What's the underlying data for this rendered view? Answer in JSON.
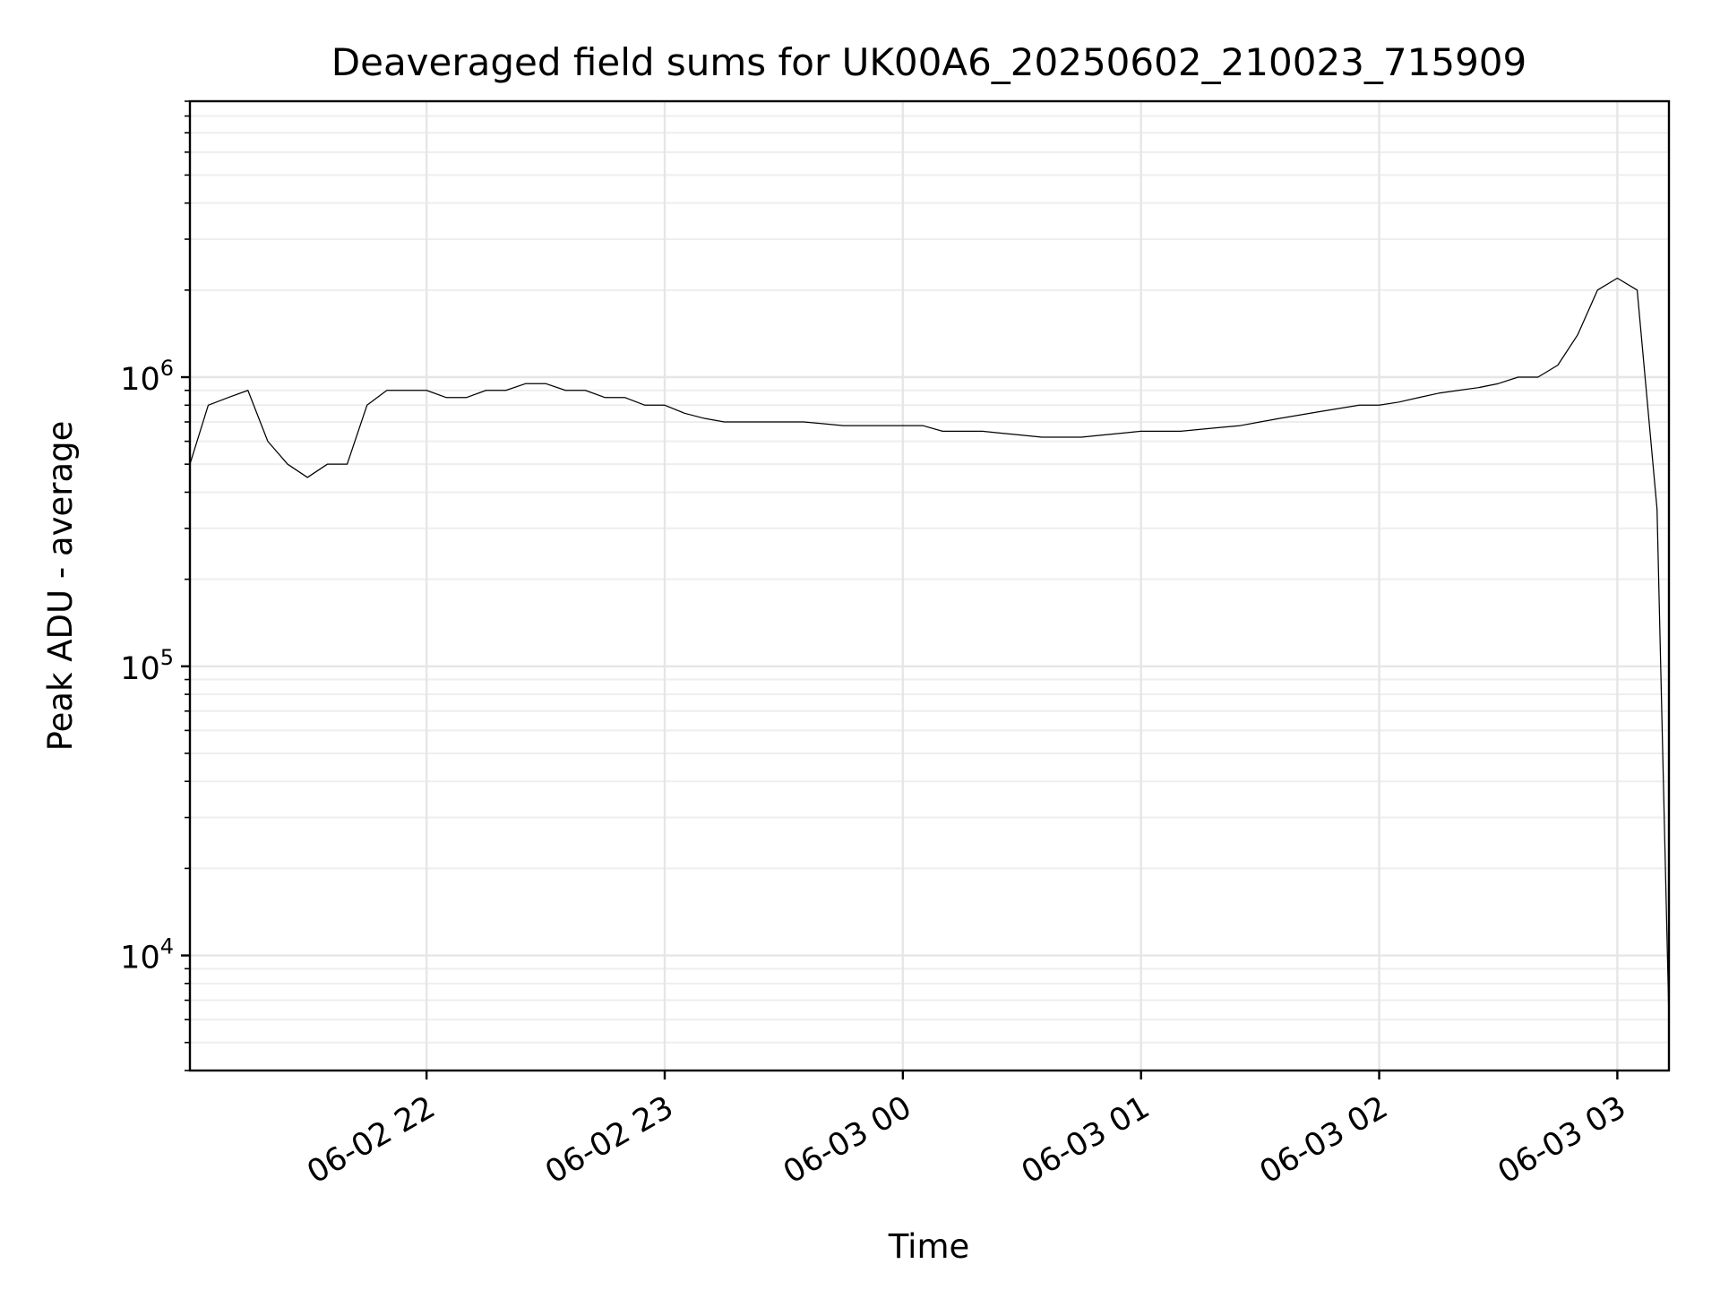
{
  "chart_data": {
    "type": "line",
    "title": "Deaveraged field sums for UK00A6_20250602_210023_715909",
    "xlabel": "Time",
    "ylabel": "Peak ADU - average",
    "y_scale": "log",
    "ylim": [
      4000,
      9000000
    ],
    "xlim": [
      "2025-06-02 21:00:23",
      "2025-06-03 03:13:00"
    ],
    "x_ticks": [
      {
        "value": "2025-06-02 22:00:00",
        "label": "06-02 22"
      },
      {
        "value": "2025-06-02 23:00:00",
        "label": "06-02 23"
      },
      {
        "value": "2025-06-03 00:00:00",
        "label": "06-03 00"
      },
      {
        "value": "2025-06-03 01:00:00",
        "label": "06-03 01"
      },
      {
        "value": "2025-06-03 02:00:00",
        "label": "06-03 02"
      },
      {
        "value": "2025-06-03 03:00:00",
        "label": "06-03 03"
      }
    ],
    "y_ticks": [
      {
        "value": 10000,
        "base": "10",
        "exponent": "4"
      },
      {
        "value": 100000,
        "base": "10",
        "exponent": "5"
      },
      {
        "value": 1000000,
        "base": "10",
        "exponent": "6"
      }
    ],
    "grid": true,
    "line_color": "#000000",
    "series": [
      {
        "x": [
          "2025-06-02 21:00:23",
          "2025-06-02 21:05:00",
          "2025-06-02 21:10:00",
          "2025-06-02 21:15:00",
          "2025-06-02 21:20:00",
          "2025-06-02 21:25:00",
          "2025-06-02 21:30:00",
          "2025-06-02 21:35:00",
          "2025-06-02 21:40:00",
          "2025-06-02 21:45:00",
          "2025-06-02 21:50:00",
          "2025-06-02 21:55:00",
          "2025-06-02 22:00:00",
          "2025-06-02 22:05:00",
          "2025-06-02 22:10:00",
          "2025-06-02 22:15:00",
          "2025-06-02 22:20:00",
          "2025-06-02 22:25:00",
          "2025-06-02 22:30:00",
          "2025-06-02 22:35:00",
          "2025-06-02 22:40:00",
          "2025-06-02 22:45:00",
          "2025-06-02 22:50:00",
          "2025-06-02 22:55:00",
          "2025-06-02 23:00:00",
          "2025-06-02 23:05:00",
          "2025-06-02 23:10:00",
          "2025-06-02 23:15:00",
          "2025-06-02 23:20:00",
          "2025-06-02 23:25:00",
          "2025-06-02 23:30:00",
          "2025-06-02 23:35:00",
          "2025-06-02 23:40:00",
          "2025-06-02 23:45:00",
          "2025-06-02 23:50:00",
          "2025-06-02 23:55:00",
          "2025-06-03 00:00:00",
          "2025-06-03 00:05:00",
          "2025-06-03 00:10:00",
          "2025-06-03 00:15:00",
          "2025-06-03 00:20:00",
          "2025-06-03 00:25:00",
          "2025-06-03 00:30:00",
          "2025-06-03 00:35:00",
          "2025-06-03 00:40:00",
          "2025-06-03 00:45:00",
          "2025-06-03 00:50:00",
          "2025-06-03 00:55:00",
          "2025-06-03 01:00:00",
          "2025-06-03 01:05:00",
          "2025-06-03 01:10:00",
          "2025-06-03 01:15:00",
          "2025-06-03 01:20:00",
          "2025-06-03 01:25:00",
          "2025-06-03 01:30:00",
          "2025-06-03 01:35:00",
          "2025-06-03 01:40:00",
          "2025-06-03 01:45:00",
          "2025-06-03 01:50:00",
          "2025-06-03 01:55:00",
          "2025-06-03 02:00:00",
          "2025-06-03 02:05:00",
          "2025-06-03 02:10:00",
          "2025-06-03 02:15:00",
          "2025-06-03 02:20:00",
          "2025-06-03 02:25:00",
          "2025-06-03 02:30:00",
          "2025-06-03 02:35:00",
          "2025-06-03 02:40:00",
          "2025-06-03 02:45:00",
          "2025-06-03 02:50:00",
          "2025-06-03 02:55:00",
          "2025-06-03 03:00:00",
          "2025-06-03 03:05:00",
          "2025-06-03 03:10:00",
          "2025-06-03 03:13:00"
        ],
        "y": [
          500000,
          800000,
          850000,
          900000,
          600000,
          500000,
          450000,
          500000,
          500000,
          800000,
          900000,
          900000,
          900000,
          850000,
          850000,
          900000,
          900000,
          950000,
          950000,
          900000,
          900000,
          850000,
          850000,
          800000,
          800000,
          750000,
          720000,
          700000,
          700000,
          700000,
          700000,
          700000,
          690000,
          680000,
          680000,
          680000,
          680000,
          680000,
          650000,
          650000,
          650000,
          640000,
          630000,
          620000,
          620000,
          620000,
          630000,
          640000,
          650000,
          650000,
          650000,
          660000,
          670000,
          680000,
          700000,
          720000,
          740000,
          760000,
          780000,
          800000,
          800000,
          820000,
          850000,
          880000,
          900000,
          920000,
          950000,
          1000000,
          1000000,
          1100000,
          1400000,
          2000000,
          2200000,
          2000000,
          350000,
          6000
        ]
      }
    ]
  }
}
